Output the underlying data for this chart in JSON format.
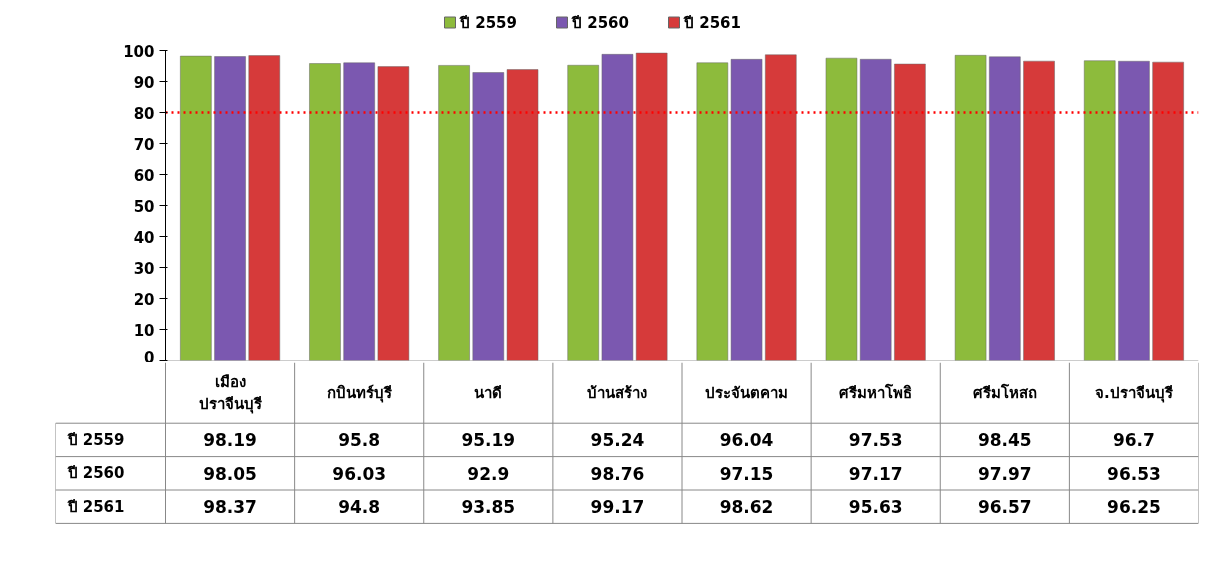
{
  "chart_data": {
    "type": "bar",
    "categories": [
      "เมือง\nปราจีนบุรี",
      "กบินทร์บุรี",
      "นาดี",
      "บ้านสร้าง",
      "ประจันตคาม",
      "ศรีมหาโพธิ",
      "ศรีมโหสถ",
      "จ.ปราจีนบุรี"
    ],
    "series": [
      {
        "name": "ปี 2559",
        "color": "#8dbb3c",
        "values": [
          98.19,
          95.8,
          95.19,
          95.24,
          96.04,
          97.53,
          98.45,
          96.7
        ]
      },
      {
        "name": "ปี 2560",
        "color": "#7b58b0",
        "values": [
          98.05,
          96.03,
          92.9,
          98.76,
          97.15,
          97.17,
          97.97,
          96.53
        ]
      },
      {
        "name": "ปี 2561",
        "color": "#d63a3a",
        "values": [
          98.37,
          94.8,
          93.85,
          99.17,
          98.62,
          95.63,
          96.57,
          96.25
        ]
      }
    ],
    "ylim": [
      0,
      100
    ],
    "yticks": [
      0,
      10,
      20,
      30,
      40,
      50,
      60,
      70,
      80,
      90,
      100
    ],
    "ref_lines": [
      {
        "axis": "y",
        "value": 80,
        "color": "#ff0000",
        "line_style": "dotted"
      }
    ],
    "data_labels": true,
    "grid": false,
    "legend": "top"
  }
}
